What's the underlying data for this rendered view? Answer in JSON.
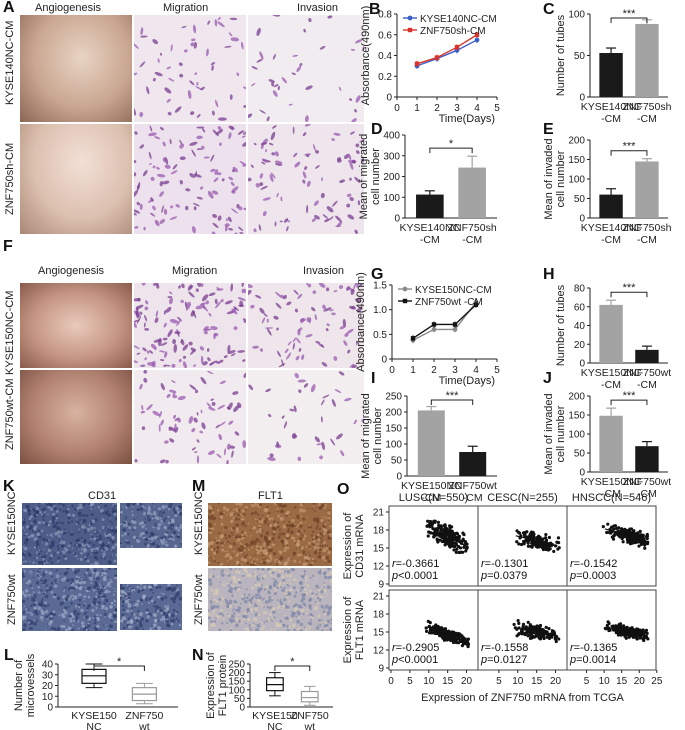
{
  "panel_letters": {
    "A": "A",
    "B": "B",
    "C": "C",
    "D": "D",
    "E": "E",
    "F": "F",
    "G": "G",
    "H": "H",
    "I": "I",
    "J": "J",
    "K": "K",
    "L": "L",
    "M": "M",
    "N": "N",
    "O": "O"
  },
  "image_captions": {
    "angiogenesis": "Angiogenesis",
    "migration": "Migration",
    "invasion": "Invasion",
    "cd31": "CD31",
    "flt1": "FLT1"
  },
  "row_labels": {
    "a1": "KYSE140NC-CM",
    "a2": "ZNF750sh-CM",
    "f1": "KYSE150NC-CM",
    "f2": "ZNF750wt-CM",
    "k1": "KYSE150NC",
    "k2": "ZNF750wt",
    "m1": "KYSE150NC",
    "m2": "ZNF750wt"
  },
  "chart_data": [
    {
      "id": "B",
      "type": "line",
      "xlabel": "Time(Days)",
      "ylabel": "Absorbance(490nm)",
      "xlim": [
        0,
        5
      ],
      "ylim": [
        0,
        0.8
      ],
      "xticks": [
        "0",
        "1",
        "2",
        "3",
        "4",
        "5"
      ],
      "yticks": [
        "0",
        "0.2",
        "0.4",
        "0.6",
        "0.8"
      ],
      "legend": "top-left",
      "x": [
        1,
        2,
        3,
        4
      ],
      "series": [
        {
          "name": "KYSE140NC-CM",
          "values": [
            0.3,
            0.37,
            0.45,
            0.55
          ],
          "color": "#3b5fc9"
        },
        {
          "name": "ZNF750sh-CM",
          "values": [
            0.32,
            0.38,
            0.48,
            0.6
          ],
          "color": "#d9342b"
        }
      ]
    },
    {
      "id": "C",
      "type": "bar",
      "ylabel": "Number of tubes",
      "ylim": [
        0,
        100
      ],
      "yticks": [
        "0",
        "50",
        "100"
      ],
      "categories": [
        "KYSE140NC-CM",
        "ZNF750sh-CM"
      ],
      "category_lines": [
        [
          "KYSE140NC",
          "-CM"
        ],
        [
          "ZNF750sh",
          "-CM"
        ]
      ],
      "values": [
        53,
        88
      ],
      "errors": [
        6,
        5
      ],
      "colors": [
        "#1a1a1a",
        "#a3a3a3"
      ],
      "sig": "***"
    },
    {
      "id": "D",
      "type": "bar",
      "ylabel": "Mean of migrated cell number",
      "ylim": [
        0,
        400
      ],
      "yticks": [
        "0",
        "100",
        "200",
        "300",
        "400"
      ],
      "categories": [
        "KYSE140NC-CM",
        "ZNF750sh-CM"
      ],
      "category_lines": [
        [
          "KYSE140NC",
          "-CM"
        ],
        [
          "ZNF750sh",
          "-CM"
        ]
      ],
      "values": [
        113,
        243
      ],
      "errors": [
        18,
        55
      ],
      "colors": [
        "#1a1a1a",
        "#a3a3a3"
      ],
      "sig": "*"
    },
    {
      "id": "E",
      "type": "bar",
      "ylabel": "Mean of invaded cell number",
      "ylim": [
        0,
        200
      ],
      "yticks": [
        "0",
        "50",
        "100",
        "150",
        "200"
      ],
      "categories": [
        "KYSE140NC-CM",
        "ZNF750sh-CM"
      ],
      "category_lines": [
        [
          "KYSE140NC",
          "-CM"
        ],
        [
          "ZNF750sh",
          "-CM"
        ]
      ],
      "values": [
        60,
        145
      ],
      "errors": [
        15,
        7
      ],
      "colors": [
        "#1a1a1a",
        "#a3a3a3"
      ],
      "sig": "***"
    },
    {
      "id": "G",
      "type": "line",
      "xlabel": "Time(Days)",
      "ylabel": "Absorbance(490nm)",
      "xlim": [
        0,
        5
      ],
      "ylim": [
        0,
        1.5
      ],
      "xticks": [
        "0",
        "1",
        "2",
        "3",
        "4",
        "5"
      ],
      "yticks": [
        "0",
        "0.5",
        "1.0",
        "1.5"
      ],
      "legend": "top-left",
      "x": [
        1,
        2,
        3,
        4
      ],
      "series": [
        {
          "name": "KYSE150NC-CM",
          "values": [
            0.38,
            0.6,
            0.6,
            1.15
          ],
          "color": "#8a8a8a"
        },
        {
          "name": "ZNF750wt -CM",
          "values": [
            0.42,
            0.7,
            0.7,
            1.1
          ],
          "color": "#111111"
        }
      ]
    },
    {
      "id": "H",
      "type": "bar",
      "ylabel": "Number of tubes",
      "ylim": [
        0,
        80
      ],
      "yticks": [
        "0",
        "20",
        "40",
        "60",
        "80"
      ],
      "categories": [
        "KYSE150NC-CM",
        "ZNF750wt-CM"
      ],
      "category_lines": [
        [
          "KYSE150NC",
          "-CM"
        ],
        [
          "ZNF750wt",
          "-CM"
        ]
      ],
      "values": [
        62,
        14
      ],
      "errors": [
        5,
        4
      ],
      "colors": [
        "#a3a3a3",
        "#1a1a1a"
      ],
      "sig": "***"
    },
    {
      "id": "I",
      "type": "bar",
      "ylabel": "Mean of migrated cell number",
      "ylim": [
        0,
        250
      ],
      "yticks": [
        "0",
        "50",
        "100",
        "150",
        "200",
        "250"
      ],
      "categories": [
        "KYSE150NC-CM",
        "ZNF750wt-CM"
      ],
      "category_lines": [
        [
          "KYSE150NC",
          "-CM"
        ],
        [
          "ZNF750wt",
          "-CM"
        ]
      ],
      "values": [
        205,
        75
      ],
      "errors": [
        12,
        18
      ],
      "colors": [
        "#a3a3a3",
        "#1a1a1a"
      ],
      "sig": "***"
    },
    {
      "id": "J",
      "type": "bar",
      "ylabel": "Mean of invaded cell number",
      "ylim": [
        0,
        200
      ],
      "yticks": [
        "0",
        "50",
        "100",
        "150",
        "200"
      ],
      "categories": [
        "KYSE150NC-CM",
        "ZNF750wt-CM"
      ],
      "category_lines": [
        [
          "KYSE150NC",
          "-CM"
        ],
        [
          "ZNF750wt",
          "-CM"
        ]
      ],
      "values": [
        148,
        68
      ],
      "errors": [
        20,
        12
      ],
      "colors": [
        "#a3a3a3",
        "#1a1a1a"
      ],
      "sig": "***"
    },
    {
      "id": "L",
      "type": "box",
      "ylabel": "Number of microvessels",
      "ylim": [
        0,
        40
      ],
      "yticks": [
        "0",
        "10",
        "20",
        "30",
        "40"
      ],
      "categories": [
        "KYSE150 NC",
        "ZNF750 wt"
      ],
      "category_lines": [
        [
          "KYSE150",
          "NC"
        ],
        [
          "ZNF750",
          "wt"
        ]
      ],
      "boxes": [
        {
          "min": 18,
          "q1": 22,
          "median": 29,
          "q3": 35,
          "max": 40
        },
        {
          "min": 3,
          "q1": 6,
          "median": 12,
          "q3": 18,
          "max": 22
        }
      ],
      "colors": [
        "#111111",
        "#9a9a9a"
      ],
      "sig": "*"
    },
    {
      "id": "N",
      "type": "box",
      "ylabel": "Expression of FLT1 protein",
      "ylim": [
        0,
        250
      ],
      "yticks": [
        "0",
        "50",
        "100",
        "150",
        "200",
        "250"
      ],
      "categories": [
        "KYSE150 NC",
        "ZNF750 wt"
      ],
      "category_lines": [
        [
          "KYSE150",
          "NC"
        ],
        [
          "ZNF750",
          "wt"
        ]
      ],
      "boxes": [
        {
          "min": 65,
          "q1": 95,
          "median": 130,
          "q3": 170,
          "max": 200
        },
        {
          "min": 10,
          "q1": 30,
          "median": 55,
          "q3": 90,
          "max": 120
        }
      ],
      "colors": [
        "#111111",
        "#9a9a9a"
      ],
      "sig": "*"
    },
    {
      "id": "O",
      "type": "scatter",
      "xlabel": "Expression of ZNF750 mRNA from TCGA",
      "xticks": [
        "0",
        "5",
        "10",
        "15",
        "20",
        "0",
        "5",
        "10",
        "15",
        "20",
        "0",
        "5",
        "10",
        "15",
        "20",
        "25"
      ],
      "yticks": [
        "9",
        "12",
        "15",
        "18",
        "21"
      ],
      "columns": [
        "LUSC(N=550)",
        "CESC(N=255)",
        "HNSCC(N=546)"
      ],
      "row_labels": [
        [
          "Expression of",
          "CD31 mRNA"
        ],
        [
          "Expression of",
          "FLT1 mRNA"
        ]
      ],
      "panels": [
        {
          "row": 0,
          "col": 0,
          "r": "-0.3661",
          "p": "<0.0001",
          "slope": -0.35,
          "cx": 15,
          "cy": 17,
          "spread": 2.0,
          "n": 220,
          "seed": 3
        },
        {
          "row": 0,
          "col": 1,
          "r": "-0.1301",
          "p": "=0.0379",
          "slope": -0.15,
          "cx": 15,
          "cy": 16.2,
          "spread": 1.5,
          "n": 150,
          "seed": 7
        },
        {
          "row": 0,
          "col": 2,
          "r": "-0.1542",
          "p": "=0.0003",
          "slope": -0.18,
          "cx": 16,
          "cy": 17,
          "spread": 1.4,
          "n": 220,
          "seed": 11
        },
        {
          "row": 1,
          "col": 0,
          "r": "-0.2905",
          "p": "<0.0001",
          "slope": -0.25,
          "cx": 15,
          "cy": 14.5,
          "spread": 1.1,
          "n": 220,
          "seed": 13
        },
        {
          "row": 1,
          "col": 1,
          "r": "-0.1558",
          "p": "=0.0127",
          "slope": -0.12,
          "cx": 15,
          "cy": 15,
          "spread": 1.4,
          "n": 150,
          "seed": 17
        },
        {
          "row": 1,
          "col": 2,
          "r": "-0.1365",
          "p": "=0.0014",
          "slope": -0.12,
          "cx": 16,
          "cy": 15,
          "spread": 1.2,
          "n": 220,
          "seed": 19
        }
      ]
    }
  ]
}
